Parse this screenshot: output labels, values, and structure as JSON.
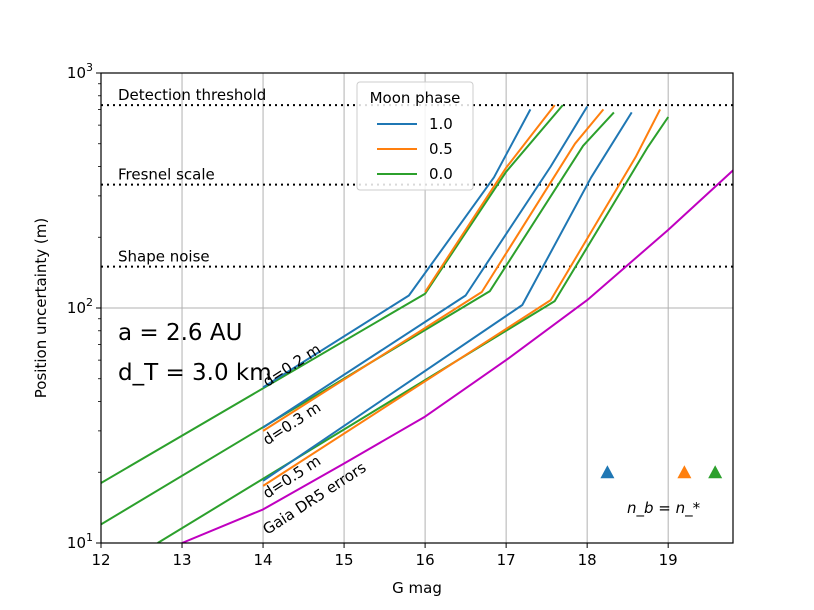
{
  "chart_data": {
    "type": "line",
    "title": "",
    "xlabel": "G mag",
    "ylabel": "Position uncertainty (m)",
    "xlim": [
      12.0,
      19.8
    ],
    "ylim": [
      10,
      1000
    ],
    "yscale": "log",
    "grid": true,
    "x_ticks": [
      12,
      13,
      14,
      15,
      16,
      17,
      18,
      19
    ],
    "x_tick_labels": [
      "12",
      "13",
      "14",
      "15",
      "16",
      "17",
      "18",
      "19"
    ],
    "y_ticks": [
      {
        "value": 10,
        "base": "10",
        "exp": "1"
      },
      {
        "value": 100,
        "base": "10",
        "exp": "2"
      },
      {
        "value": 1000,
        "base": "10",
        "exp": "3"
      }
    ],
    "legend": {
      "title": "Moon phase",
      "placement": "top-center",
      "entries": [
        {
          "label": "1.0",
          "color": "#1f77b4"
        },
        {
          "label": "0.5",
          "color": "#ff7f0e"
        },
        {
          "label": "0.0",
          "color": "#2ca02c"
        }
      ]
    },
    "thresholds": [
      {
        "label": "Detection threshold",
        "value": 730
      },
      {
        "label": "Fresnel scale",
        "value": 335
      },
      {
        "label": "Shape noise",
        "value": 150
      }
    ],
    "annotations": {
      "a_text": "a = 2.6 AU",
      "dT_text": "d_T = 3.0 km",
      "nb_text": "n_b = n_*",
      "curve_labels": [
        {
          "text": "d=0.2 m",
          "x": 14.05,
          "y": 46
        },
        {
          "text": "d=0.3 m",
          "x": 14.05,
          "y": 26
        },
        {
          "text": "d=0.5 m",
          "x": 14.05,
          "y": 15.4
        },
        {
          "text": "Gaia DR5 errors",
          "x": 14.05,
          "y": 10.8
        }
      ]
    },
    "markers": [
      {
        "x": 18.25,
        "y": 20,
        "color": "#1f77b4"
      },
      {
        "x": 19.2,
        "y": 20,
        "color": "#ff7f0e"
      },
      {
        "x": 19.58,
        "y": 20,
        "color": "#2ca02c"
      }
    ],
    "series": [
      {
        "name": "d=0.2 m, phase 0.0",
        "color": "#2ca02c",
        "x": [
          12.0,
          16.0,
          17.0,
          17.7
        ],
        "y": [
          18,
          115,
          380,
          730
        ]
      },
      {
        "name": "d=0.2 m, phase 0.5",
        "color": "#ff7f0e",
        "x": [
          16.0,
          17.0,
          17.6
        ],
        "y": [
          117,
          395,
          730
        ]
      },
      {
        "name": "d=0.2 m, phase 1.0",
        "color": "#1f77b4",
        "x": [
          14.0,
          15.8,
          16.85,
          17.3
        ],
        "y": [
          46,
          113,
          360,
          700
        ]
      },
      {
        "name": "d=0.3 m, phase 0.0",
        "color": "#2ca02c",
        "x": [
          12.0,
          16.8,
          17.95,
          18.33
        ],
        "y": [
          12,
          118,
          490,
          680
        ]
      },
      {
        "name": "d=0.3 m, phase 0.5",
        "color": "#ff7f0e",
        "x": [
          14.0,
          16.7,
          17.85,
          18.2
        ],
        "y": [
          30,
          117,
          500,
          700
        ]
      },
      {
        "name": "d=0.3 m, phase 1.0",
        "color": "#1f77b4",
        "x": [
          14.0,
          16.5,
          17.55,
          18.0
        ],
        "y": [
          31,
          113,
          400,
          720
        ]
      },
      {
        "name": "d=0.5 m, phase 0.0",
        "color": "#2ca02c",
        "x": [
          12.7,
          17.6,
          18.75,
          19.0
        ],
        "y": [
          10,
          107,
          485,
          650
        ]
      },
      {
        "name": "d=0.5 m, phase 0.5",
        "color": "#ff7f0e",
        "x": [
          14.0,
          17.55,
          18.6,
          18.9
        ],
        "y": [
          17.5,
          108,
          440,
          700
        ]
      },
      {
        "name": "d=0.5 m, phase 1.0",
        "color": "#1f77b4",
        "x": [
          14.0,
          17.2,
          18.05,
          18.55
        ],
        "y": [
          18.4,
          103,
          360,
          680
        ]
      },
      {
        "name": "Gaia DR5 errors",
        "color": "#c000c0",
        "x": [
          13.0,
          14.0,
          15.0,
          16.0,
          17.0,
          18.0,
          19.0,
          19.8
        ],
        "y": [
          10,
          13.9,
          21.8,
          34.5,
          60,
          108,
          215,
          385
        ]
      }
    ]
  }
}
